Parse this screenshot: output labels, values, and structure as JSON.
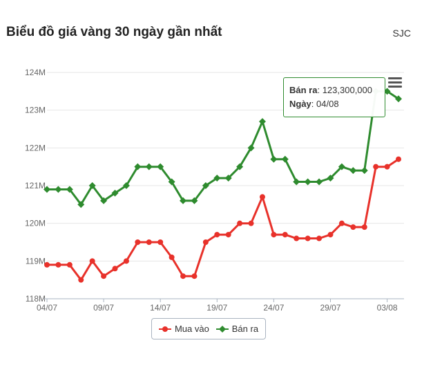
{
  "header": {
    "title": "Biểu đồ giá vàng 30 ngày gần nhất",
    "brand": "SJC"
  },
  "colors": {
    "buy": "#e8312a",
    "sell": "#2e8b2e",
    "grid": "#e6e6e6",
    "axis": "#aab4c0",
    "text": "#666666"
  },
  "tooltip": {
    "label1": "Bán ra",
    "value1": "123,300,000",
    "label2": "Ngày",
    "value2": "04/08"
  },
  "chart_data": {
    "type": "line",
    "title": "Biểu đồ giá vàng 30 ngày gần nhất",
    "y_ticks": [
      "118M",
      "119M",
      "120M",
      "121M",
      "122M",
      "123M",
      "124M"
    ],
    "ylim": [
      118,
      124
    ],
    "x_tick_labels": [
      "04/07",
      "09/07",
      "14/07",
      "19/07",
      "24/07",
      "29/07",
      "03/08"
    ],
    "categories": [
      "04/07",
      "05/07",
      "06/07",
      "07/07",
      "08/07",
      "09/07",
      "10/07",
      "11/07",
      "12/07",
      "13/07",
      "14/07",
      "15/07",
      "16/07",
      "17/07",
      "18/07",
      "19/07",
      "20/07",
      "21/07",
      "22/07",
      "23/07",
      "24/07",
      "25/07",
      "26/07",
      "27/07",
      "28/07",
      "29/07",
      "30/07",
      "31/07",
      "01/08",
      "02/08",
      "03/08",
      "04/08"
    ],
    "grid": true,
    "legend_position": "bottom",
    "series": [
      {
        "name": "Mua vào",
        "color": "#e8312a",
        "marker": "circle",
        "values": [
          118.9,
          118.9,
          118.9,
          118.5,
          119.0,
          118.6,
          118.8,
          119.0,
          119.5,
          119.5,
          119.5,
          119.1,
          118.6,
          118.6,
          119.5,
          119.7,
          119.7,
          120.0,
          120.0,
          120.7,
          119.7,
          119.7,
          119.6,
          119.6,
          119.6,
          119.7,
          120.0,
          119.9,
          119.9,
          121.5,
          121.5,
          121.7
        ]
      },
      {
        "name": "Bán ra",
        "color": "#2e8b2e",
        "marker": "diamond",
        "values": [
          120.9,
          120.9,
          120.9,
          120.5,
          121.0,
          120.6,
          120.8,
          121.0,
          121.5,
          121.5,
          121.5,
          121.1,
          120.6,
          120.6,
          121.0,
          121.2,
          121.2,
          121.5,
          122.0,
          122.7,
          121.7,
          121.7,
          121.1,
          121.1,
          121.1,
          121.2,
          121.5,
          121.4,
          121.4,
          123.5,
          123.5,
          123.3
        ]
      }
    ]
  }
}
